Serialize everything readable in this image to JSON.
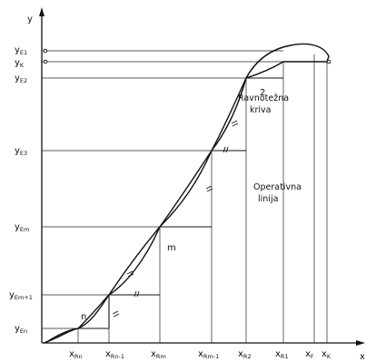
{
  "axes": {
    "x": "x",
    "y": "y"
  },
  "curves": {
    "equilibrium": [
      "Ravnotežna",
      "kriva"
    ],
    "operating": [
      "Operativna",
      "linija"
    ]
  },
  "stages": {
    "s2": "2",
    "sm": "m",
    "sn": "n"
  },
  "y_labels": [
    {
      "main": "y",
      "sub": "E1"
    },
    {
      "main": "y",
      "sub": "K"
    },
    {
      "main": "y",
      "sub": "E2"
    },
    {
      "main": "y",
      "sub": "E3"
    },
    {
      "main": "y",
      "sub": "Em"
    },
    {
      "main": "y",
      "sub": "Em+1"
    },
    {
      "main": "y",
      "sub": "En"
    }
  ],
  "x_labels": [
    {
      "main": "x",
      "sub": "Rn"
    },
    {
      "main": "x",
      "sub": "Rn-1"
    },
    {
      "main": "x",
      "sub": "Rm"
    },
    {
      "main": "x",
      "sub": "Rm-1"
    },
    {
      "main": "x",
      "sub": "R2"
    },
    {
      "main": "x",
      "sub": "R1"
    },
    {
      "main": "x",
      "sub": "F"
    },
    {
      "main": "x",
      "sub": "K"
    }
  ]
}
